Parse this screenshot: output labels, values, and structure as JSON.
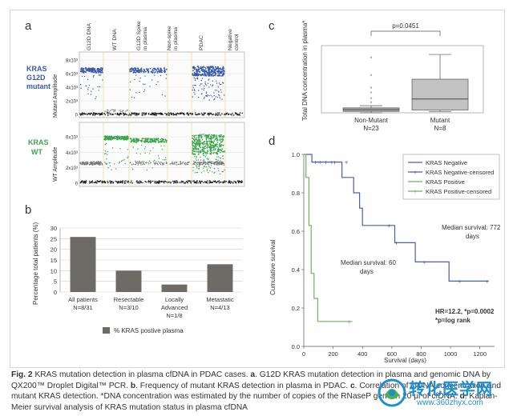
{
  "panel_a": {
    "letter": "a",
    "column_labels": [
      "G12D DNA",
      "WT DNA",
      "G12D Spike in plasma",
      "Non-spike in plasma",
      "PDAC",
      "Negative control"
    ],
    "top_row_label": [
      "KRAS",
      "G12D",
      "mutant"
    ],
    "bottom_row_label": [
      "KRAS",
      "WT"
    ],
    "top_ylabel": "Mutant Amplitude",
    "bottom_ylabel": "WT Amplitude",
    "top_ticks": [
      "8x10³",
      "6x10³",
      "4x10³",
      "2x10³",
      "0"
    ],
    "bottom_ticks": [
      "6x10³",
      "4x10³",
      "2x10³",
      "0"
    ],
    "colors": {
      "mutant": "#3a5aa8",
      "wt": "#3aa64a",
      "negative": "#222222",
      "grey": "#7a7a7a"
    }
  },
  "panel_b": {
    "letter": "b",
    "legend": "% KRAS postive plasma",
    "chart_data": {
      "type": "bar",
      "categories": [
        "All patients",
        "Resectable",
        "Locally Advanced",
        "Metastatic"
      ],
      "category_notes": [
        "N=8/31",
        "N=3/10",
        "N=1/8",
        "N=4/13"
      ],
      "values": [
        25.8,
        10,
        3.5,
        13
      ],
      "ylabel": "Percentage total patients (%)",
      "yticks": [
        0,
        5,
        10,
        15,
        20,
        25,
        30
      ],
      "ylim": [
        0,
        30
      ],
      "grid": true,
      "bar_color": "#6e6a66",
      "legend_position": "bottom"
    }
  },
  "panel_c": {
    "letter": "c",
    "p_label": "p=0.0451",
    "chart_data": {
      "type": "box",
      "ylabel": "Total DNA concentration in plasma*",
      "categories": [
        "Non-Mutant",
        "Mutant"
      ],
      "category_notes": [
        "N=23",
        "N=8"
      ],
      "ylim": [
        0,
        1900
      ],
      "boxes": [
        {
          "min": 0,
          "q1": 40,
          "median": 90,
          "q3": 140,
          "max": 200,
          "outliers": [
            280,
            400,
            560,
            700,
            1050,
            1550
          ]
        },
        {
          "min": 40,
          "q1": 80,
          "median": 390,
          "q3": 950,
          "max": 1650,
          "outliers": []
        }
      ],
      "box_colors": [
        "#a8a8a8",
        "#c2c2c2"
      ]
    }
  },
  "panel_d": {
    "letter": "d",
    "chart_data": {
      "type": "line",
      "xlabel": "Survival (days)",
      "ylabel": "Cumulative survival",
      "xlim": [
        0,
        1300
      ],
      "ylim": [
        0,
        1.0
      ],
      "xticks": [
        0,
        200,
        400,
        600,
        800,
        1000,
        1200
      ],
      "yticks": [
        0.0,
        0.2,
        0.4,
        0.6,
        0.8,
        1.0
      ],
      "series": [
        {
          "name": "KRAS Negative",
          "color": "#4b5ea8",
          "x": [
            0,
            55,
            55,
            260,
            260,
            340,
            340,
            380,
            380,
            400,
            400,
            430,
            430,
            620,
            620,
            760,
            760,
            990,
            990,
            1260
          ],
          "y": [
            1.0,
            1.0,
            0.96,
            0.96,
            0.88,
            0.88,
            0.8,
            0.8,
            0.72,
            0.72,
            0.63,
            0.63,
            0.63,
            0.63,
            0.54,
            0.54,
            0.44,
            0.44,
            0.34,
            0.34
          ]
        },
        {
          "name": "KRAS Negative-censored",
          "color": "#4b5ea8",
          "x": [
            80,
            110,
            150,
            190,
            210,
            290,
            580,
            630,
            820,
            1060,
            1250
          ],
          "y": [
            0.96,
            0.96,
            0.96,
            0.96,
            0.96,
            0.96,
            0.63,
            0.54,
            0.44,
            0.34,
            0.34
          ]
        },
        {
          "name": "KRAS Positive",
          "color": "#6fb55a",
          "x": [
            0,
            15,
            15,
            35,
            35,
            50,
            50,
            70,
            70,
            95,
            95,
            150,
            150,
            280,
            280,
            330
          ],
          "y": [
            1.0,
            1.0,
            0.88,
            0.88,
            0.63,
            0.63,
            0.38,
            0.38,
            0.25,
            0.25,
            0.13,
            0.13,
            0.13,
            0.13,
            0.13,
            0.13
          ]
        },
        {
          "name": "KRAS Positive-censored",
          "color": "#6fb55a",
          "x": [
            310
          ],
          "y": [
            0.13
          ]
        }
      ],
      "annotations": [
        "Median survival: 772 days",
        "Median survival: 60 days",
        "HR=12.2, *p=0.0002",
        "*p=log rank"
      ]
    }
  },
  "caption": {
    "fig_label": "Fig. 2",
    "text_1": " KRAS mutation detection in plasma cfDNA in PDAC cases. ",
    "a_label": "a",
    "text_2": ". G12D KRAS mutation detection in plasma and genomic DNA by QX200™ Droplet Digital™ PCR. ",
    "b_label": "b",
    "text_3": ". Frequency of mutant KRAS detection in plasma in PDAC. ",
    "c_label": "c",
    "text_4": ". Correlation of cfDNA concentration and mutant KRAS detection. *DNA concentration was estimated by the number of copies of the RNaseP gene in 20 μl of cfDNA. ",
    "d_label": "d",
    "text_5": ". Kaplan-Meier survival analysis of KRAS mutation status in plasma cfDNA"
  },
  "watermark": {
    "title": "转化医学网",
    "url": "www.360zhyx.com"
  }
}
